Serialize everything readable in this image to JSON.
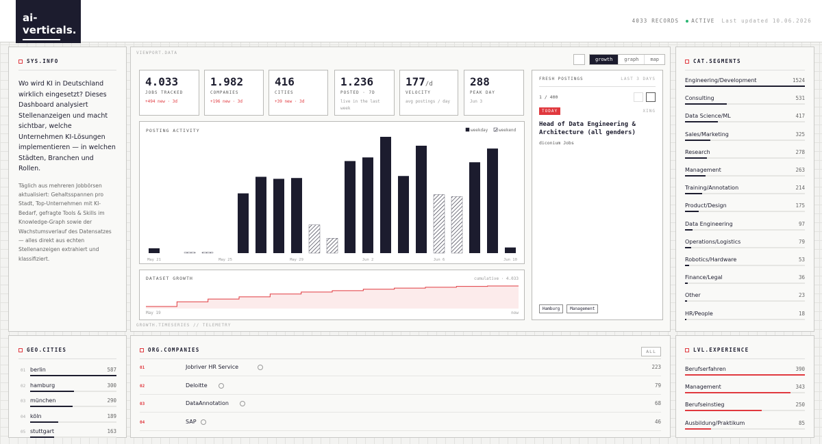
{
  "header": {
    "logo": "ai-verticals.",
    "records": "4033 RECORDS",
    "status": "ACTIVE",
    "updated": "Last updated 10.06.2026"
  },
  "sys_info": {
    "title": "SYS.INFO",
    "lead": "Wo wird KI in Deutschland wirklich eingesetzt? Dieses Dashboard analysiert Stellenanzeigen und macht sichtbar, welche Unternehmen KI-Lösungen implementieren — in welchen Städten, Branchen und Rollen.",
    "body": "Täglich aus mehreren Jobbörsen aktualisiert: Gehaltsspannen pro Stadt, Top-Unternehmen mit KI-Bedarf, gefragte Tools & Skills im Knowledge-Graph sowie der Wachstumsverlauf des Datensatzes — alles direkt aus echten Stellenanzeigen extrahiert und klassifiziert."
  },
  "viewport": {
    "label": "VIEWPORT.DATA",
    "tabs": [
      "growth",
      "graph",
      "map"
    ],
    "footer": "GROWTH.TIMESERIES // TELEMETRY"
  },
  "kpis": [
    {
      "value": "4.033",
      "label": "JOBS TRACKED",
      "note": "+494 new · 3d",
      "color": "#e0383e"
    },
    {
      "value": "1.982",
      "label": "COMPANIES",
      "note": "+196 new · 3d",
      "color": "#e0383e"
    },
    {
      "value": "416",
      "label": "CITIES",
      "note": "+39 new · 3d",
      "color": "#e0383e"
    },
    {
      "value": "1.236",
      "label": "POSTED · 7D",
      "note": "live in the last week",
      "color": "#999999"
    },
    {
      "value": "177",
      "unit": "/d",
      "label": "VELOCITY",
      "note": "avg postings / day",
      "color": "#999999"
    },
    {
      "value": "288",
      "label": "PEAK DAY",
      "note": "Jun 3",
      "color": "#999999"
    }
  ],
  "posting_activity": {
    "type": "bar",
    "title": "POSTING ACTIVITY",
    "categories": [
      "May 21",
      null,
      null,
      null,
      "May 25",
      null,
      null,
      null,
      "May 29",
      null,
      null,
      null,
      "Jun 2",
      null,
      null,
      null,
      "Jun 6",
      null,
      null,
      null,
      "Jun 10"
    ],
    "series": [
      {
        "name": "weekday",
        "color": "#1c1c2e",
        "hatched": false,
        "values": [
          12,
          0,
          null,
          null,
          0,
          148,
          189,
          184,
          186,
          null,
          null,
          228,
          237,
          288,
          191,
          266,
          null,
          null,
          225,
          259,
          14
        ]
      },
      {
        "name": "weekend",
        "color": "#1c1c2e",
        "hatched": true,
        "values": [
          null,
          null,
          2,
          2,
          null,
          null,
          null,
          null,
          null,
          70,
          37,
          null,
          null,
          null,
          null,
          null,
          145,
          140,
          null,
          null,
          null
        ]
      }
    ]
  },
  "dataset_growth": {
    "type": "line",
    "title": "DATASET GROWTH",
    "summary": "cumulative · 4.033",
    "start_label": "May 19",
    "end_label": "now",
    "color": "#e0383e",
    "values": [
      370,
      1200,
      1700,
      2100,
      2600,
      2950,
      3200,
      3450,
      3650,
      3800,
      3950,
      4033
    ]
  },
  "fresh_postings": {
    "title": "FRESH POSTINGS",
    "range": "LAST 3 DAYS",
    "counter": "1 / 400",
    "badge": "TODAY",
    "source": "XING",
    "job_title": "Head of Data Engineering & Architecture (all genders)",
    "company": "diconium Jobs",
    "tags": [
      "Hamburg",
      "Management"
    ]
  },
  "cat_segments": {
    "title": "CAT.SEGMENTS",
    "items": [
      {
        "name": "Engineering/Development",
        "count": 1524
      },
      {
        "name": "Consulting",
        "count": 531
      },
      {
        "name": "Data Science/ML",
        "count": 417
      },
      {
        "name": "Sales/Marketing",
        "count": 325
      },
      {
        "name": "Research",
        "count": 278
      },
      {
        "name": "Management",
        "count": 263
      },
      {
        "name": "Training/Annotation",
        "count": 214
      },
      {
        "name": "Product/Design",
        "count": 175
      },
      {
        "name": "Data Engineering",
        "count": 97
      },
      {
        "name": "Operations/Logistics",
        "count": 79
      },
      {
        "name": "Robotics/Hardware",
        "count": 53
      },
      {
        "name": "Finance/Legal",
        "count": 36
      },
      {
        "name": "Other",
        "count": 23
      },
      {
        "name": "HR/People",
        "count": 18
      }
    ]
  },
  "geo_cities": {
    "title": "GEO.CITIES",
    "items": [
      {
        "rank": "01",
        "name": "berlin",
        "count": 587
      },
      {
        "rank": "02",
        "name": "hamburg",
        "count": 300
      },
      {
        "rank": "03",
        "name": "münchen",
        "count": 290
      },
      {
        "rank": "04",
        "name": "köln",
        "count": 189
      },
      {
        "rank": "05",
        "name": "stuttgart",
        "count": 163
      }
    ]
  },
  "org_companies": {
    "title": "ORG.COMPANIES",
    "button": "ALL",
    "items": [
      {
        "rank": "01",
        "name": "Jobriver HR Service",
        "count": 223
      },
      {
        "rank": "02",
        "name": "Deloitte",
        "count": 79
      },
      {
        "rank": "03",
        "name": "DataAnnotation",
        "count": 68
      },
      {
        "rank": "04",
        "name": "SAP",
        "count": 46
      }
    ]
  },
  "lvl_experience": {
    "title": "LVL.EXPERIENCE",
    "items": [
      {
        "name": "Berufserfahren",
        "count": 390
      },
      {
        "name": "Management",
        "count": 343
      },
      {
        "name": "Berufseinstieg",
        "count": 250
      },
      {
        "name": "Ausbildung/Praktikum",
        "count": 85
      }
    ]
  }
}
